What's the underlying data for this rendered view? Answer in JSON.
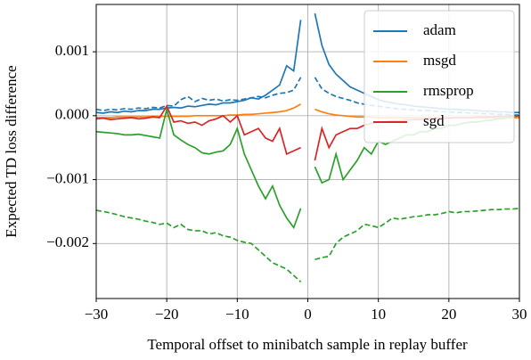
{
  "chart_data": {
    "type": "line",
    "x_label": "Temporal offset to minibatch sample in replay buffer",
    "y_label": "Expected TD loss difference",
    "x": [
      -30,
      -29,
      -28,
      -27,
      -26,
      -25,
      -24,
      -23,
      -22,
      -21,
      -20,
      -19,
      -18,
      -17,
      -16,
      -15,
      -14,
      -13,
      -12,
      -11,
      -10,
      -9,
      -8,
      -7,
      -6,
      -5,
      -4,
      -3,
      -2,
      -1,
      0,
      1,
      2,
      3,
      4,
      5,
      6,
      7,
      8,
      9,
      10,
      11,
      12,
      13,
      14,
      15,
      16,
      17,
      18,
      19,
      20,
      21,
      22,
      23,
      24,
      25,
      26,
      27,
      28,
      29,
      30
    ],
    "series": [
      {
        "name": "adam",
        "color": "#1f77b4",
        "values": [
          5e-05,
          4e-05,
          6e-05,
          5e-05,
          7e-05,
          6e-05,
          8e-05,
          8e-05,
          0.0001,
          0.0001,
          0.00012,
          0.00013,
          0.00012,
          0.00015,
          0.00014,
          0.00016,
          0.00018,
          0.00017,
          0.0002,
          0.0002,
          0.00022,
          0.00024,
          0.00028,
          0.00026,
          0.00032,
          0.0004,
          0.00048,
          0.00078,
          0.0007,
          0.0015,
          null,
          0.0016,
          0.0011,
          0.0008,
          0.00065,
          0.00055,
          0.00045,
          0.0004,
          0.00035,
          0.0003,
          0.00025,
          0.00022,
          0.0002,
          0.00018,
          0.00017,
          0.00015,
          0.00014,
          0.00013,
          0.00012,
          0.00011,
          0.0001,
          0.0001,
          9e-05,
          9e-05,
          8e-05,
          7e-05,
          7e-05,
          6e-05,
          6e-05,
          5e-05,
          5e-05
        ]
      },
      {
        "color": "#1f77b4",
        "dashed": true,
        "values": [
          0.0001,
          8e-05,
          0.0001,
          9e-05,
          0.00011,
          0.0001,
          0.00012,
          0.00011,
          0.00013,
          0.00012,
          0.00016,
          0.00015,
          0.00025,
          0.0003,
          0.00022,
          0.00027,
          0.00024,
          0.00026,
          0.00023,
          0.00025,
          0.00024,
          0.00026,
          0.00028,
          0.0003,
          0.00028,
          0.00032,
          0.00035,
          0.00036,
          0.0004,
          0.0006,
          null,
          0.0006,
          0.00042,
          0.00035,
          0.0003,
          0.00027,
          0.00024,
          0.0002,
          0.00018,
          0.00016,
          0.00015,
          0.00013,
          0.00012,
          0.0001,
          0.0001,
          9e-05,
          8e-05,
          8e-05,
          7e-05,
          6e-05,
          6e-05,
          5e-05,
          5e-05,
          4e-05,
          4e-05,
          3e-05,
          3e-05,
          2e-05,
          2e-05,
          1e-05,
          1e-05
        ]
      },
      {
        "name": "msgd",
        "color": "#ff7f0e",
        "values": [
          -3e-05,
          -3e-05,
          -3e-05,
          -2e-05,
          -2e-05,
          -2e-05,
          -2e-05,
          -2e-05,
          -1e-05,
          -1e-05,
          -1e-05,
          -1e-05,
          -1e-05,
          -1e-05,
          0,
          0,
          0,
          0,
          0,
          1e-05,
          1e-05,
          2e-05,
          2e-05,
          3e-05,
          4e-05,
          5e-05,
          6e-05,
          8e-05,
          0.00012,
          0.00018,
          null,
          0.0001,
          6e-05,
          3e-05,
          1e-05,
          0,
          -1e-05,
          -2e-05,
          -2e-05,
          -2e-05,
          -3e-05,
          -3e-05,
          -3e-05,
          -3e-05,
          -3e-05,
          -3e-05,
          -3e-05,
          -3e-05,
          -3e-05,
          -3e-05,
          -3e-05,
          -3e-05,
          -3e-05,
          -3e-05,
          -3e-05,
          -3e-05,
          -3e-05,
          -3e-05,
          -3e-05,
          -3e-05,
          -3e-05
        ]
      },
      {
        "name": "rmsprop",
        "color": "#2ca02c",
        "values": [
          -0.00025,
          -0.00026,
          -0.00027,
          -0.00028,
          -0.0003,
          -0.0003,
          -0.00029,
          -0.00031,
          -0.00033,
          -0.00035,
          0.0001,
          -0.0003,
          -0.00038,
          -0.00045,
          -0.0005,
          -0.00058,
          -0.0006,
          -0.00057,
          -0.00055,
          -0.00045,
          -0.0002,
          -0.0006,
          -0.00085,
          -0.0011,
          -0.0013,
          -0.0011,
          -0.0014,
          -0.0016,
          -0.00175,
          -0.00145,
          null,
          -0.0008,
          -0.00105,
          -0.001,
          -0.0006,
          -0.001,
          -0.00085,
          -0.0007,
          -0.0005,
          -0.0006,
          -0.0004,
          -0.00045,
          -0.0004,
          -0.00035,
          -0.0003,
          -0.0003,
          -0.00025,
          -0.00025,
          -0.0002,
          -0.0002,
          -0.00015,
          -0.00015,
          -0.00012,
          -0.0001,
          -0.0001,
          -8e-05,
          -7e-05,
          -5e-05,
          -4e-05,
          -2e-05,
          0
        ]
      },
      {
        "color": "#2ca02c",
        "dashed": true,
        "values": [
          -0.00148,
          -0.0015,
          -0.00152,
          -0.00155,
          -0.00158,
          -0.0016,
          -0.00162,
          -0.00165,
          -0.00167,
          -0.0017,
          -0.00168,
          -0.00175,
          -0.0017,
          -0.00178,
          -0.0018,
          -0.0018,
          -0.00185,
          -0.00183,
          -0.00188,
          -0.0019,
          -0.00195,
          -0.00198,
          -0.002,
          -0.0021,
          -0.0022,
          -0.0023,
          -0.00235,
          -0.0024,
          -0.0025,
          -0.0026,
          null,
          -0.00225,
          -0.00222,
          -0.0022,
          -0.002,
          -0.0019,
          -0.00185,
          -0.0018,
          -0.0017,
          -0.00172,
          -0.00175,
          -0.00168,
          -0.0016,
          -0.00162,
          -0.0016,
          -0.00158,
          -0.00157,
          -0.00155,
          -0.00155,
          -0.00153,
          -0.0015,
          -0.00152,
          -0.0015,
          -0.0015,
          -0.00149,
          -0.00148,
          -0.00147,
          -0.00147,
          -0.00146,
          -0.00146,
          -0.00145
        ]
      },
      {
        "name": "sgd",
        "color": "#d62728",
        "values": [
          -5e-05,
          -4e-05,
          -6e-05,
          -5e-05,
          -4e-05,
          -3e-05,
          -5e-05,
          -4e-05,
          -2e-05,
          -3e-05,
          0.00015,
          -0.0001,
          -8e-05,
          -0.00012,
          -0.0001,
          -0.00015,
          -8e-05,
          -5e-05,
          0,
          -0.0001,
          0,
          -0.0003,
          -0.00025,
          -0.0002,
          -0.00035,
          -0.0004,
          -0.0002,
          -0.0006,
          -0.00055,
          -0.0005,
          null,
          -0.0007,
          -0.0002,
          -0.0005,
          -0.0003,
          -0.00025,
          -0.0002,
          -0.0002,
          -0.00015,
          -0.00012,
          -0.0001,
          -0.0001,
          -8e-05,
          -8e-05,
          -7e-05,
          -6e-05,
          -6e-05,
          -5e-05,
          -5e-05,
          -4e-05,
          -4e-05,
          -3e-05,
          -3e-05,
          -3e-05,
          -2e-05,
          -2e-05,
          -2e-05,
          -1e-05,
          -1e-05,
          0,
          0
        ]
      }
    ],
    "xlim": [
      -30,
      30
    ],
    "ylim": [
      -0.00286,
      0.00174
    ],
    "xticks": [
      {
        "value": -30,
        "label": "−30"
      },
      {
        "value": -20,
        "label": "−20"
      },
      {
        "value": -10,
        "label": "−10"
      },
      0,
      10,
      20,
      30
    ],
    "yticks": [
      {
        "value": -0.002,
        "label": "−0.002"
      },
      {
        "value": -0.001,
        "label": "−0.001"
      },
      {
        "value": 0,
        "label": "0.000"
      },
      {
        "value": 0.001,
        "label": "0.001"
      }
    ],
    "grid": true,
    "legend": "upper right"
  }
}
